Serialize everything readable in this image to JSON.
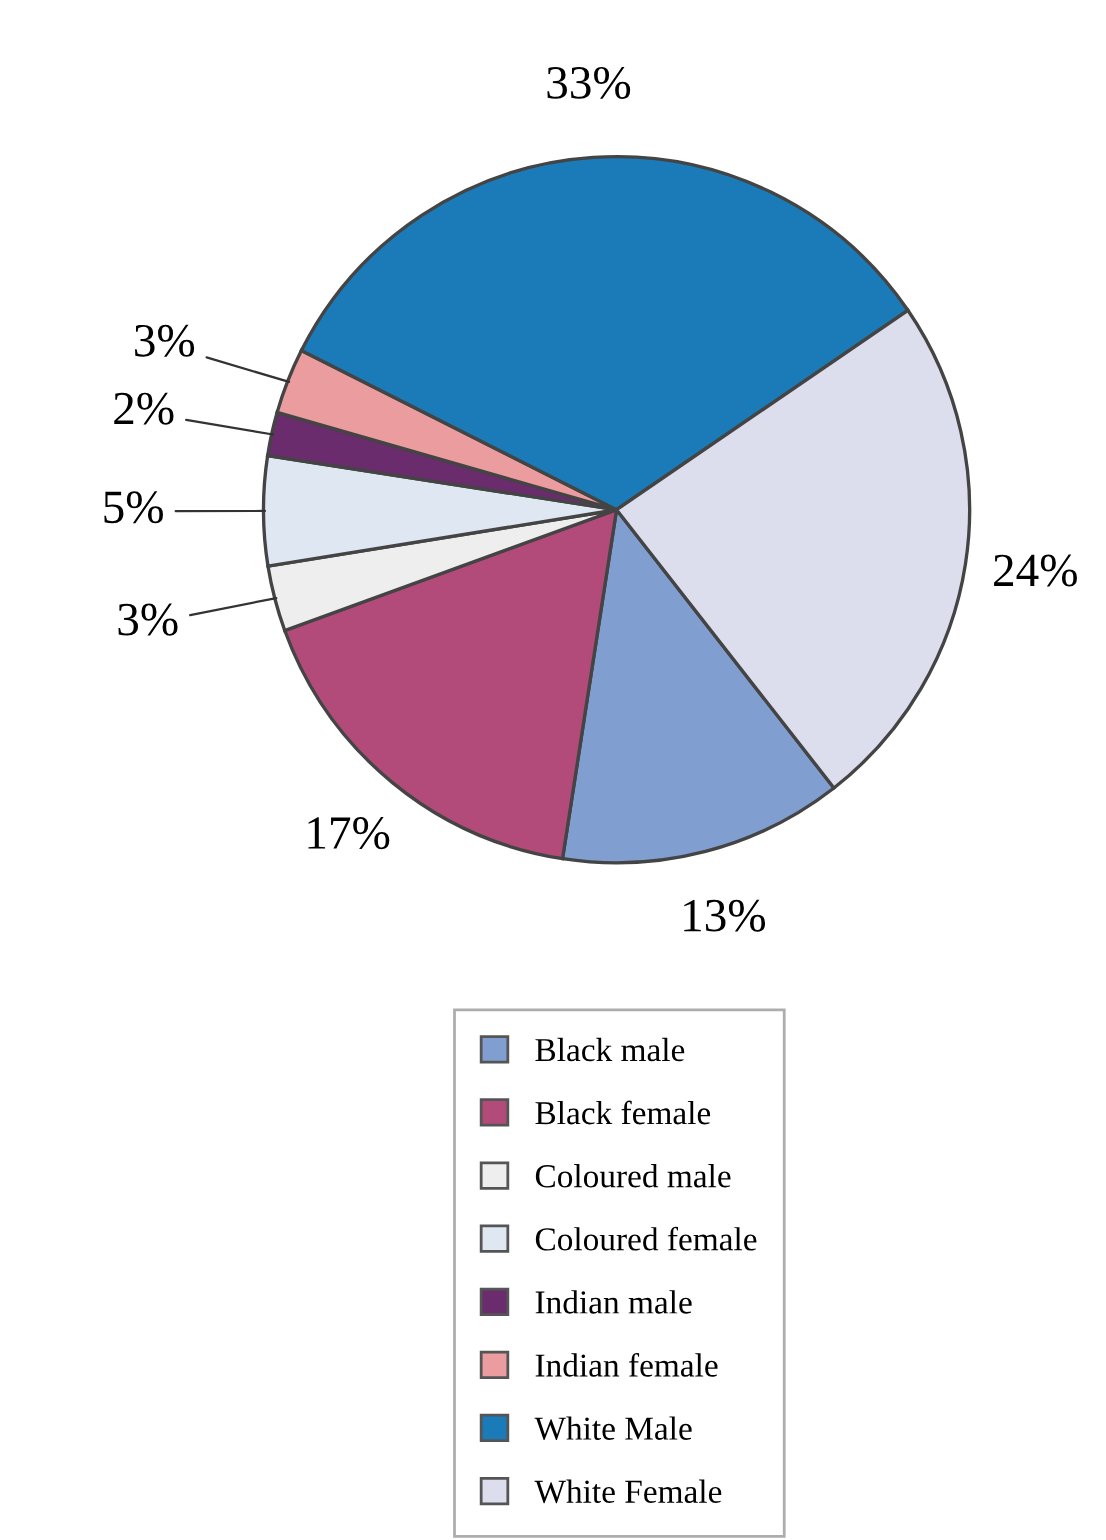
{
  "chart_data": {
    "type": "pie",
    "categories": [
      "Black male",
      "Black female",
      "Coloured male",
      "Coloured female",
      "Indian male",
      "Indian female",
      "White Male",
      "White Female"
    ],
    "values": [
      13,
      17,
      3,
      5,
      2,
      3,
      33,
      24
    ],
    "value_labels": [
      "13%",
      "17%",
      "3%",
      "5%",
      "2%",
      "3%",
      "33%",
      "24%"
    ],
    "colors": [
      "#819ed0",
      "#b24b7a",
      "#eeeeee",
      "#dfe8f2",
      "#6b2c6e",
      "#eb9c9e",
      "#1b7bb8",
      "#dcdded"
    ],
    "legend": "bottom"
  }
}
